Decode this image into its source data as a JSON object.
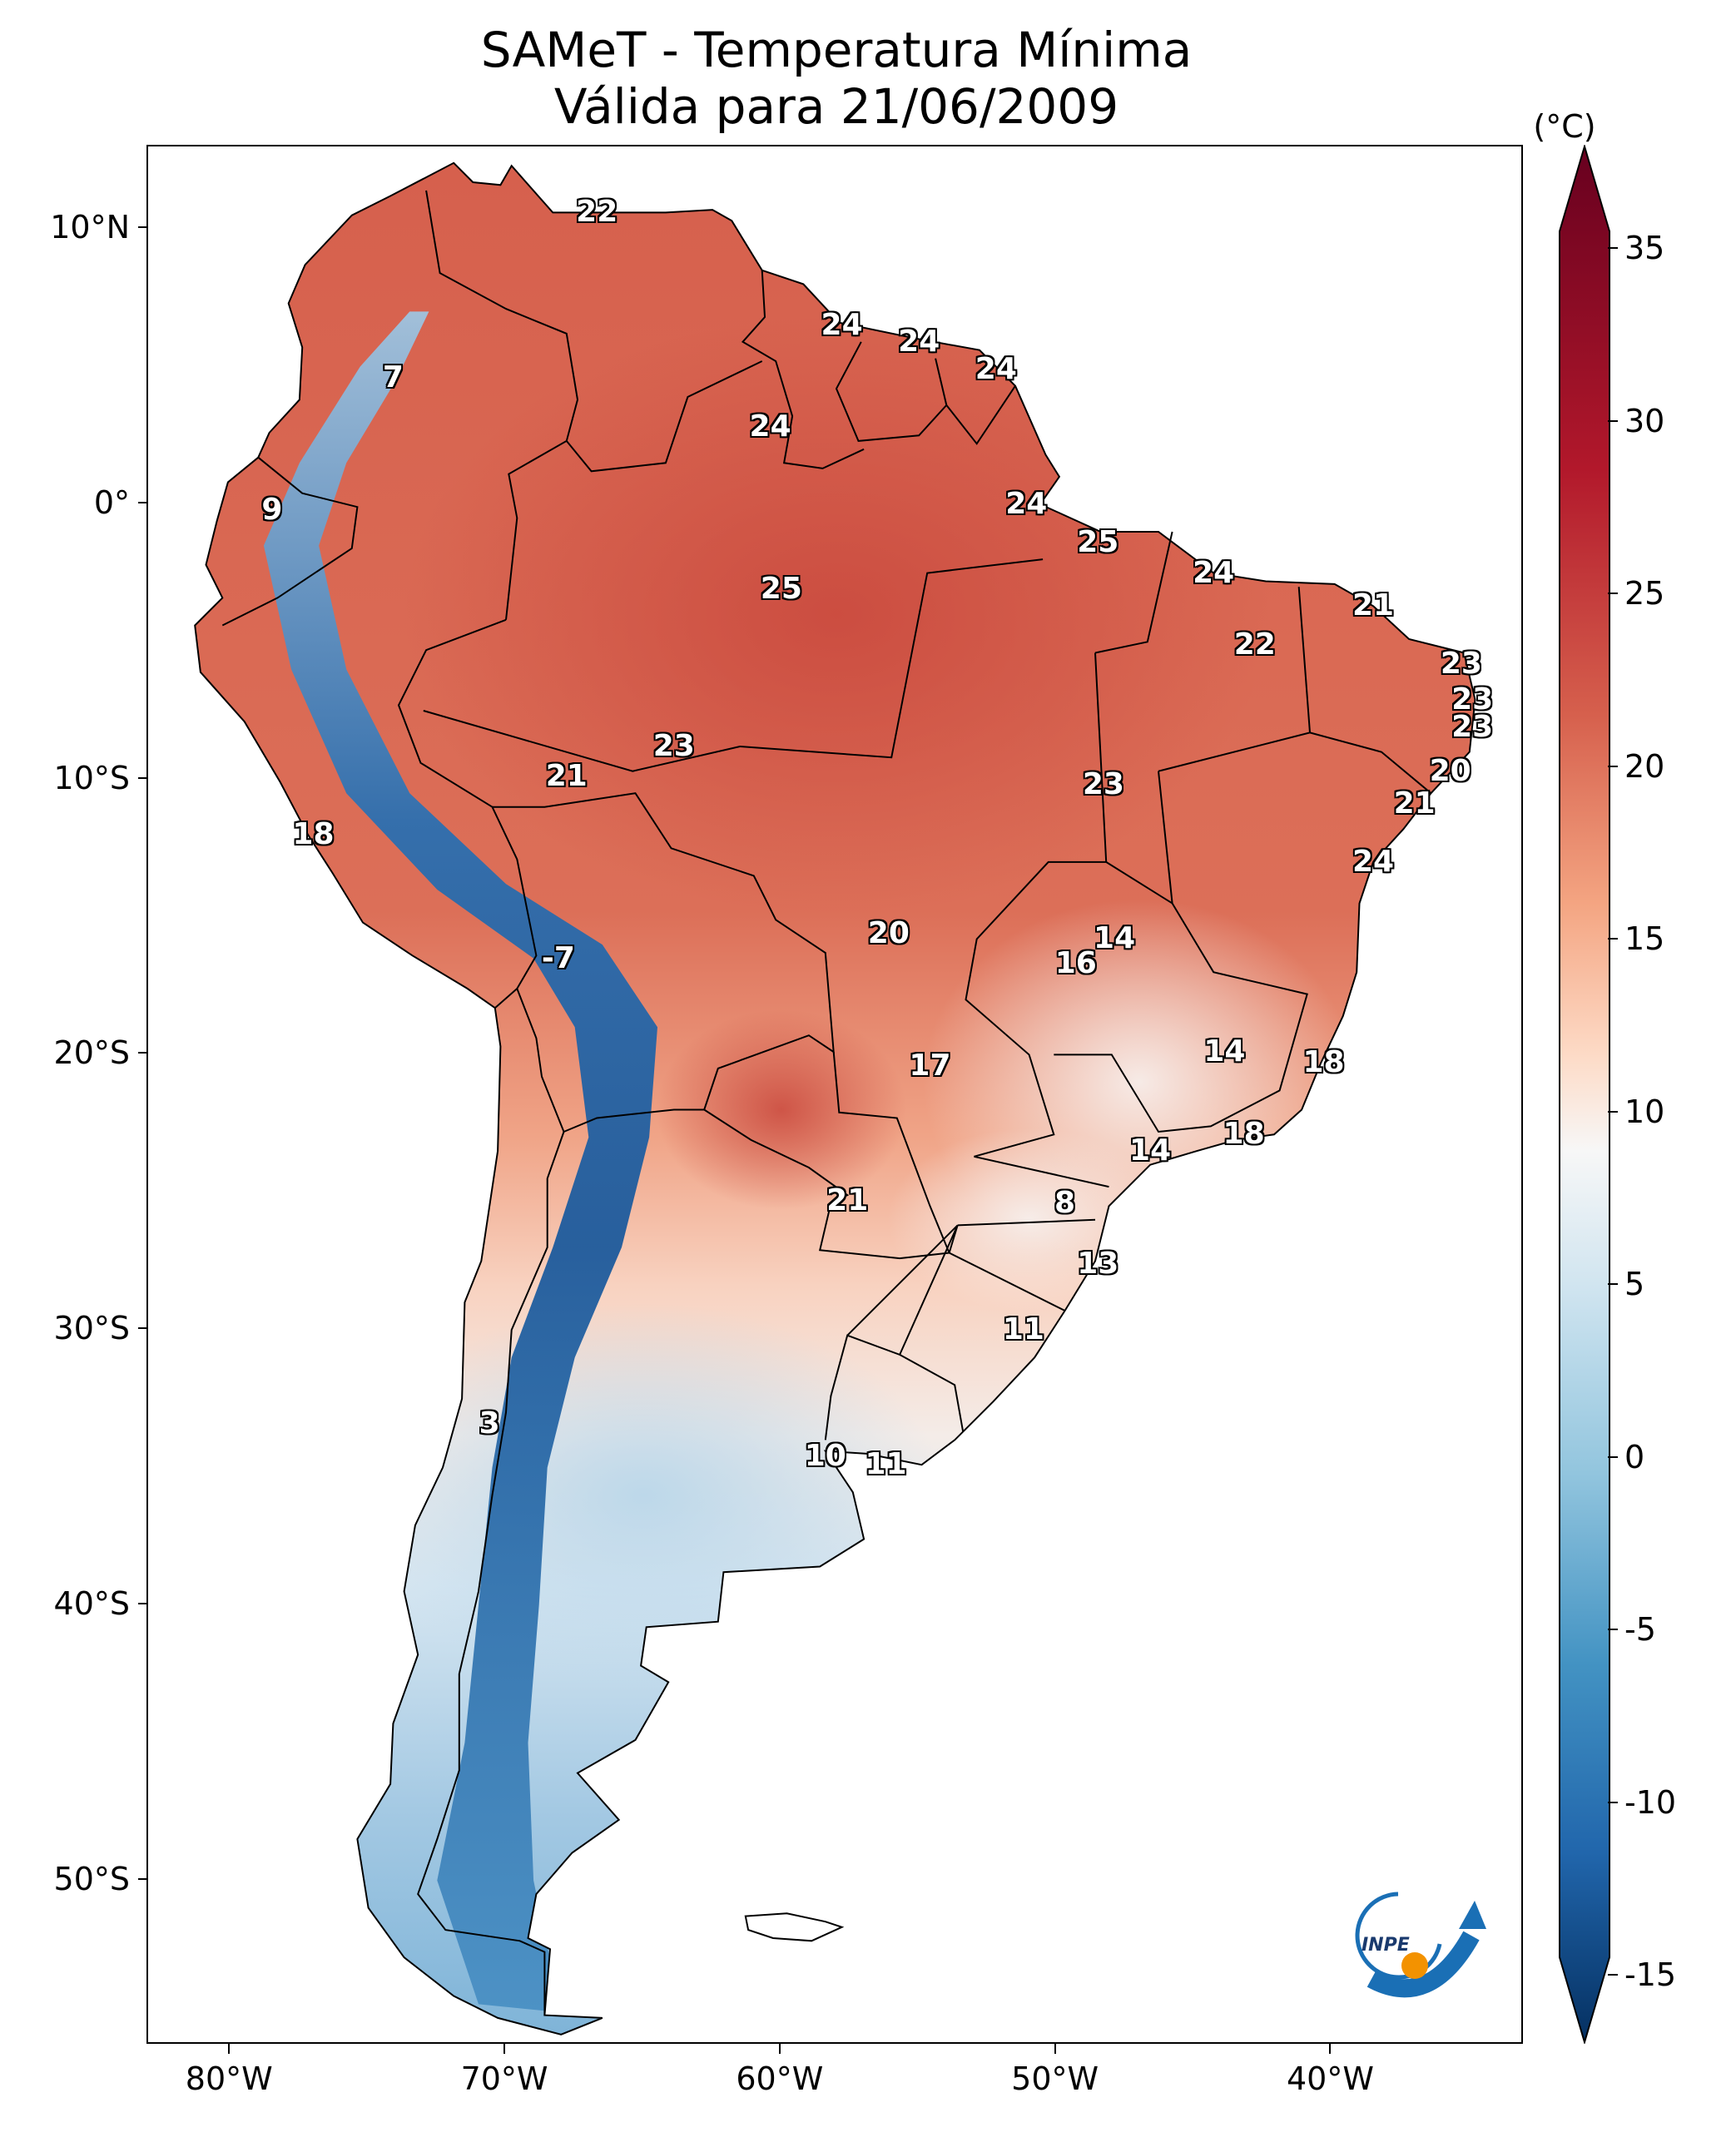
{
  "title": {
    "line1": "SAMeT - Temperatura Mínima",
    "line2": "Válida para 21/06/2009"
  },
  "map": {
    "region": "South America",
    "extent": {
      "lon": [
        -83,
        -33
      ],
      "lat": [
        -56,
        13
      ]
    },
    "projection": "PlateCarree",
    "lat_ticks": [
      {
        "value": 10,
        "label": "10°N"
      },
      {
        "value": 0,
        "label": "0°"
      },
      {
        "value": -10,
        "label": "10°S"
      },
      {
        "value": -20,
        "label": "20°S"
      },
      {
        "value": -30,
        "label": "30°S"
      },
      {
        "value": -40,
        "label": "40°S"
      },
      {
        "value": -50,
        "label": "50°S"
      }
    ],
    "lon_ticks": [
      {
        "value": -80,
        "label": "80°W"
      },
      {
        "value": -70,
        "label": "70°W"
      },
      {
        "value": -60,
        "label": "60°W"
      },
      {
        "value": -50,
        "label": "50°W"
      },
      {
        "value": -40,
        "label": "40°W"
      }
    ],
    "station_labels": [
      {
        "text": "22",
        "lon": -66.7,
        "lat": 10.6
      },
      {
        "text": "24",
        "lon": -57.8,
        "lat": 6.5
      },
      {
        "text": "24",
        "lon": -55.0,
        "lat": 5.9
      },
      {
        "text": "24",
        "lon": -52.2,
        "lat": 4.9
      },
      {
        "text": "7",
        "lon": -74.1,
        "lat": 4.6
      },
      {
        "text": "24",
        "lon": -60.4,
        "lat": 2.8
      },
      {
        "text": "9",
        "lon": -78.5,
        "lat": -0.2
      },
      {
        "text": "24",
        "lon": -51.1,
        "lat": 0.0
      },
      {
        "text": "25",
        "lon": -48.5,
        "lat": -1.4
      },
      {
        "text": "25",
        "lon": -60.0,
        "lat": -3.1
      },
      {
        "text": "24",
        "lon": -44.3,
        "lat": -2.5
      },
      {
        "text": "21",
        "lon": -38.5,
        "lat": -3.7
      },
      {
        "text": "22",
        "lon": -42.8,
        "lat": -5.1
      },
      {
        "text": "23",
        "lon": -35.3,
        "lat": -5.8
      },
      {
        "text": "23",
        "lon": -34.9,
        "lat": -7.1
      },
      {
        "text": "23",
        "lon": -34.9,
        "lat": -8.1
      },
      {
        "text": "23",
        "lon": -63.9,
        "lat": -8.8
      },
      {
        "text": "21",
        "lon": -67.8,
        "lat": -9.9
      },
      {
        "text": "20",
        "lon": -35.7,
        "lat": -9.7
      },
      {
        "text": "23",
        "lon": -48.3,
        "lat": -10.2
      },
      {
        "text": "21",
        "lon": -37.0,
        "lat": -10.9
      },
      {
        "text": "18",
        "lon": -77.0,
        "lat": -12.0
      },
      {
        "text": "24",
        "lon": -38.5,
        "lat": -13.0
      },
      {
        "text": "20",
        "lon": -56.1,
        "lat": -15.6
      },
      {
        "text": "14",
        "lon": -47.9,
        "lat": -15.8
      },
      {
        "text": "16",
        "lon": -49.3,
        "lat": -16.7
      },
      {
        "text": "-7",
        "lon": -68.1,
        "lat": -16.5
      },
      {
        "text": "17",
        "lon": -54.6,
        "lat": -20.4
      },
      {
        "text": "14",
        "lon": -43.9,
        "lat": -19.9
      },
      {
        "text": "18",
        "lon": -40.3,
        "lat": -20.3
      },
      {
        "text": "18",
        "lon": -43.2,
        "lat": -22.9
      },
      {
        "text": "14",
        "lon": -46.6,
        "lat": -23.5
      },
      {
        "text": "21",
        "lon": -57.6,
        "lat": -25.3
      },
      {
        "text": "8",
        "lon": -49.7,
        "lat": -25.4
      },
      {
        "text": "13",
        "lon": -48.5,
        "lat": -27.6
      },
      {
        "text": "11",
        "lon": -51.2,
        "lat": -30.0
      },
      {
        "text": "3",
        "lon": -70.6,
        "lat": -33.4
      },
      {
        "text": "10",
        "lon": -58.4,
        "lat": -34.6
      },
      {
        "text": "11",
        "lon": -56.2,
        "lat": -34.9
      }
    ]
  },
  "colorbar": {
    "unit": "(°C)",
    "range": [
      -17,
      38
    ],
    "ticks": [
      {
        "value": 35,
        "label": "35"
      },
      {
        "value": 30,
        "label": "30"
      },
      {
        "value": 25,
        "label": "25"
      },
      {
        "value": 20,
        "label": "20"
      },
      {
        "value": 15,
        "label": "15"
      },
      {
        "value": 10,
        "label": "10"
      },
      {
        "value": 5,
        "label": "5"
      },
      {
        "value": 0,
        "label": "0"
      },
      {
        "value": -5,
        "label": "-5"
      },
      {
        "value": -10,
        "label": "-10"
      },
      {
        "value": -15,
        "label": "-15"
      }
    ],
    "colormap": "RdBu_r",
    "colors": {
      "min": "#053061",
      "low": "#2166ac",
      "mid": "#f7f7f7",
      "high": "#d6604d",
      "max": "#67001f"
    }
  },
  "logo": {
    "text": "INPE",
    "colors": {
      "blue": "#1a6fb5",
      "orange": "#f39200"
    }
  }
}
